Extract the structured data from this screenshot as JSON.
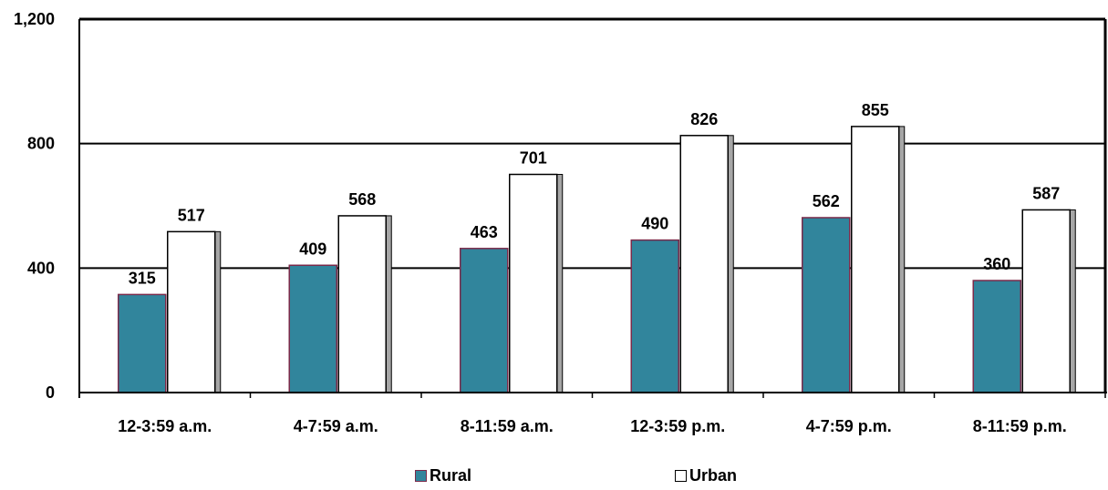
{
  "chart_data": {
    "type": "bar",
    "categories": [
      "12-3:59 a.m.",
      "4-7:59 a.m.",
      "8-11:59 a.m.",
      "12-3:59 p.m.",
      "4-7:59 p.m.",
      "8-11:59 p.m."
    ],
    "series": [
      {
        "name": "Rural",
        "values": [
          315,
          409,
          463,
          490,
          562,
          360
        ],
        "color": "#31859c",
        "edge": "#7a2a4a"
      },
      {
        "name": "Urban",
        "values": [
          517,
          568,
          701,
          826,
          855,
          587
        ],
        "color": "#ffffff",
        "edge": "#000000",
        "shadow": "#a6a6a6"
      }
    ],
    "yticks": [
      "0",
      "400",
      "800",
      "1,200"
    ],
    "ylim": [
      0,
      1200
    ],
    "grid": true,
    "legend_position": "bottom"
  }
}
